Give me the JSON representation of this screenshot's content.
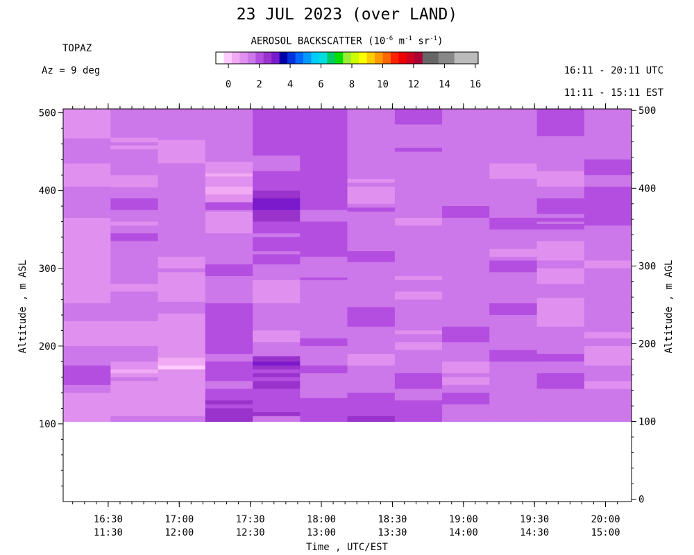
{
  "header": {
    "title": "23 JUL 2023 (over LAND)",
    "instrument": "TOPAZ",
    "azimuth": "Az =   9 deg",
    "utc_range": "16:11 - 20:11 UTC",
    "est_range": "11:11 - 15:11 EST"
  },
  "colorbar": {
    "title_parts": [
      "AEROSOL BACKSCATTER (10",
      "-6",
      " m",
      "-1",
      " sr",
      "-1",
      ")"
    ],
    "ticks": [
      "0",
      "2",
      "4",
      "6",
      "8",
      "10",
      "12",
      "14",
      "16"
    ],
    "colors": [
      "#ffffff",
      "#ffccff",
      "#f2aaf5",
      "#e090ee",
      "#cc77ea",
      "#b44ee0",
      "#9933cc",
      "#7a1acc",
      "#0000aa",
      "#0033dd",
      "#0066ff",
      "#0099ff",
      "#00ccff",
      "#00dddd",
      "#00cc66",
      "#00dd00",
      "#99ee33",
      "#ccff00",
      "#ffff00",
      "#ffcc00",
      "#ff9900",
      "#ff6600",
      "#ff2200",
      "#ee0000",
      "#cc0022",
      "#aa0033",
      "#666666",
      "#666666",
      "#888888",
      "#888888",
      "#bbbbbb",
      "#bbbbbb",
      "#bbbbbb"
    ]
  },
  "chart_data": {
    "type": "heatmap",
    "title": "23 JUL 2023 (over LAND)",
    "ylabel_left": "Altitude , m ASL",
    "ylabel_right": "Altitude , m AGL",
    "xlabel": "Time , UTC/EST",
    "y_left_ticks": [
      "100",
      "200",
      "300",
      "400",
      "500"
    ],
    "y_left_tick_values": [
      100,
      200,
      300,
      400,
      500
    ],
    "y_right_ticks": [
      "0",
      "100",
      "200",
      "300",
      "400",
      "500"
    ],
    "y_right_tick_values": [
      0,
      100,
      200,
      300,
      400,
      500
    ],
    "ylim_asl": [
      0,
      500
    ],
    "x_ticks_utc": [
      "16:30",
      "17:00",
      "17:30",
      "18:00",
      "18:30",
      "19:00",
      "19:30",
      "20:00"
    ],
    "x_ticks_est": [
      "11:30",
      "12:00",
      "12:30",
      "13:00",
      "13:30",
      "14:00",
      "14:30",
      "15:00"
    ],
    "x_tick_values_hours": [
      16.5,
      17.0,
      17.5,
      18.0,
      18.5,
      19.0,
      19.5,
      20.0
    ],
    "xlim_hours": [
      16.183,
      20.183
    ],
    "colorbar_range": [
      0,
      16
    ],
    "units": "10^-6 m^-1 sr^-1",
    "columns": [
      {
        "t_start": 16.183,
        "t_end": 16.517,
        "bins": [
          {
            "top": 505,
            "val": 1.8
          },
          {
            "top": 488,
            "val": 1.6
          },
          {
            "top": 474,
            "val": 1.9
          },
          {
            "top": 467,
            "val": 2.2
          },
          {
            "top": 435,
            "val": 1.6
          },
          {
            "top": 405,
            "val": 2.0
          },
          {
            "top": 365,
            "val": 1.7
          },
          {
            "top": 255,
            "val": 2.1
          },
          {
            "top": 232,
            "val": 1.7
          },
          {
            "top": 200,
            "val": 2.1
          },
          {
            "top": 175,
            "val": 2.6
          },
          {
            "top": 150,
            "val": 2.2
          },
          {
            "top": 140,
            "val": 1.7
          }
        ]
      },
      {
        "t_start": 16.517,
        "t_end": 16.85,
        "bins": [
          {
            "top": 505,
            "val": 2.1
          },
          {
            "top": 468,
            "val": 1.6
          },
          {
            "top": 462,
            "val": 2.1
          },
          {
            "top": 458,
            "val": 1.6
          },
          {
            "top": 453,
            "val": 2.1
          },
          {
            "top": 420,
            "val": 1.6
          },
          {
            "top": 404,
            "val": 2.0
          },
          {
            "top": 390,
            "val": 2.5
          },
          {
            "top": 375,
            "val": 2.1
          },
          {
            "top": 360,
            "val": 1.7
          },
          {
            "top": 355,
            "val": 2.1
          },
          {
            "top": 345,
            "val": 2.5
          },
          {
            "top": 335,
            "val": 2.1
          },
          {
            "top": 290,
            "val": 2.0
          },
          {
            "top": 280,
            "val": 1.7
          },
          {
            "top": 270,
            "val": 2.0
          },
          {
            "top": 232,
            "val": 1.7
          },
          {
            "top": 200,
            "val": 2.0
          },
          {
            "top": 180,
            "val": 1.6
          },
          {
            "top": 170,
            "val": 1.3
          },
          {
            "top": 165,
            "val": 1.6
          },
          {
            "top": 160,
            "val": 2.1
          },
          {
            "top": 155,
            "val": 1.7
          },
          {
            "top": 120,
            "val": 1.8
          },
          {
            "top": 110,
            "val": 2.2
          }
        ]
      },
      {
        "t_start": 16.85,
        "t_end": 17.183,
        "bins": [
          {
            "top": 505,
            "val": 2.1
          },
          {
            "top": 465,
            "val": 1.6
          },
          {
            "top": 435,
            "val": 2.1
          },
          {
            "top": 315,
            "val": 1.7
          },
          {
            "top": 300,
            "val": 2.1
          },
          {
            "top": 295,
            "val": 1.7
          },
          {
            "top": 257,
            "val": 2.0
          },
          {
            "top": 242,
            "val": 1.7
          },
          {
            "top": 185,
            "val": 1.2
          },
          {
            "top": 175,
            "val": 0.9
          },
          {
            "top": 170,
            "val": 1.5
          },
          {
            "top": 110,
            "val": 2.0
          }
        ]
      },
      {
        "t_start": 17.183,
        "t_end": 17.517,
        "bins": [
          {
            "top": 505,
            "val": 2.1
          },
          {
            "top": 437,
            "val": 1.6
          },
          {
            "top": 422,
            "val": 1.2
          },
          {
            "top": 418,
            "val": 1.7
          },
          {
            "top": 405,
            "val": 1.4
          },
          {
            "top": 395,
            "val": 1.8
          },
          {
            "top": 385,
            "val": 2.5
          },
          {
            "top": 375,
            "val": 2.1
          },
          {
            "top": 373,
            "val": 1.5
          },
          {
            "top": 345,
            "val": 2.0
          },
          {
            "top": 310,
            "val": 2.0
          },
          {
            "top": 305,
            "val": 2.5
          },
          {
            "top": 290,
            "val": 2.1
          },
          {
            "top": 255,
            "val": 2.6
          },
          {
            "top": 190,
            "val": 2.1
          },
          {
            "top": 180,
            "val": 2.5
          },
          {
            "top": 155,
            "val": 2.1
          },
          {
            "top": 145,
            "val": 2.6
          },
          {
            "top": 135,
            "val": 2.9
          },
          {
            "top": 130,
            "val": 3.2
          },
          {
            "top": 125,
            "val": 2.5
          },
          {
            "top": 120,
            "val": 3.2
          }
        ]
      },
      {
        "t_start": 17.517,
        "t_end": 17.85,
        "bins": [
          {
            "top": 505,
            "val": 2.8
          },
          {
            "top": 445,
            "val": 2.4
          },
          {
            "top": 425,
            "val": 2.7
          },
          {
            "top": 400,
            "val": 3.2
          },
          {
            "top": 390,
            "val": 3.4
          },
          {
            "top": 380,
            "val": 3.6
          },
          {
            "top": 375,
            "val": 3.3
          },
          {
            "top": 365,
            "val": 3.2
          },
          {
            "top": 360,
            "val": 2.6
          },
          {
            "top": 345,
            "val": 2.2
          },
          {
            "top": 340,
            "val": 2.6
          },
          {
            "top": 325,
            "val": 2.7
          },
          {
            "top": 322,
            "val": 2.3
          },
          {
            "top": 318,
            "val": 2.6
          },
          {
            "top": 305,
            "val": 2.4
          },
          {
            "top": 288,
            "val": 2.2
          },
          {
            "top": 285,
            "val": 1.7
          },
          {
            "top": 255,
            "val": 2.1
          },
          {
            "top": 220,
            "val": 1.6
          },
          {
            "top": 205,
            "val": 2.0
          },
          {
            "top": 187,
            "val": 3.2
          },
          {
            "top": 180,
            "val": 3.5
          },
          {
            "top": 175,
            "val": 3.2
          },
          {
            "top": 170,
            "val": 2.6
          },
          {
            "top": 165,
            "val": 3.2
          },
          {
            "top": 160,
            "val": 2.6
          },
          {
            "top": 155,
            "val": 3.2
          },
          {
            "top": 145,
            "val": 2.7
          },
          {
            "top": 120,
            "val": 2.5
          },
          {
            "top": 115,
            "val": 3.2
          },
          {
            "top": 110,
            "val": 2.2
          }
        ]
      },
      {
        "t_start": 17.85,
        "t_end": 18.183,
        "bins": [
          {
            "top": 505,
            "val": 2.8
          },
          {
            "top": 385,
            "val": 2.6
          },
          {
            "top": 375,
            "val": 2.4
          },
          {
            "top": 370,
            "val": 2.2
          },
          {
            "top": 360,
            "val": 2.6
          },
          {
            "top": 315,
            "val": 2.2
          },
          {
            "top": 288,
            "val": 2.5
          },
          {
            "top": 285,
            "val": 2.1
          },
          {
            "top": 210,
            "val": 2.5
          },
          {
            "top": 200,
            "val": 2.2
          },
          {
            "top": 175,
            "val": 2.6
          },
          {
            "top": 165,
            "val": 2.3
          },
          {
            "top": 133,
            "val": 2.5
          }
        ]
      },
      {
        "t_start": 18.183,
        "t_end": 18.517,
        "bins": [
          {
            "top": 505,
            "val": 2.1
          },
          {
            "top": 415,
            "val": 1.6
          },
          {
            "top": 410,
            "val": 2.0
          },
          {
            "top": 405,
            "val": 1.6
          },
          {
            "top": 395,
            "val": 1.8
          },
          {
            "top": 383,
            "val": 2.1
          },
          {
            "top": 378,
            "val": 2.5
          },
          {
            "top": 373,
            "val": 2.2
          },
          {
            "top": 322,
            "val": 2.6
          },
          {
            "top": 308,
            "val": 2.2
          },
          {
            "top": 250,
            "val": 2.6
          },
          {
            "top": 225,
            "val": 2.1
          },
          {
            "top": 190,
            "val": 1.7
          },
          {
            "top": 175,
            "val": 2.2
          },
          {
            "top": 140,
            "val": 2.6
          },
          {
            "top": 110,
            "val": 3.1
          }
        ]
      },
      {
        "t_start": 18.517,
        "t_end": 18.85,
        "bins": [
          {
            "top": 505,
            "val": 2.7
          },
          {
            "top": 485,
            "val": 2.1
          },
          {
            "top": 455,
            "val": 2.6
          },
          {
            "top": 450,
            "val": 2.1
          },
          {
            "top": 365,
            "val": 1.7
          },
          {
            "top": 355,
            "val": 2.1
          },
          {
            "top": 290,
            "val": 1.7
          },
          {
            "top": 285,
            "val": 2.1
          },
          {
            "top": 270,
            "val": 1.7
          },
          {
            "top": 260,
            "val": 2.1
          },
          {
            "top": 250,
            "val": 2.4
          },
          {
            "top": 240,
            "val": 2.0
          },
          {
            "top": 220,
            "val": 1.7
          },
          {
            "top": 215,
            "val": 2.1
          },
          {
            "top": 205,
            "val": 1.6
          },
          {
            "top": 195,
            "val": 2.1
          },
          {
            "top": 165,
            "val": 2.6
          },
          {
            "top": 145,
            "val": 2.1
          },
          {
            "top": 140,
            "val": 2.3
          },
          {
            "top": 130,
            "val": 2.5
          }
        ]
      },
      {
        "t_start": 18.85,
        "t_end": 19.183,
        "bins": [
          {
            "top": 505,
            "val": 2.1
          },
          {
            "top": 380,
            "val": 2.5
          },
          {
            "top": 365,
            "val": 2.1
          },
          {
            "top": 225,
            "val": 2.6
          },
          {
            "top": 205,
            "val": 2.1
          },
          {
            "top": 180,
            "val": 1.6
          },
          {
            "top": 165,
            "val": 2.0
          },
          {
            "top": 160,
            "val": 1.6
          },
          {
            "top": 150,
            "val": 2.1
          },
          {
            "top": 140,
            "val": 2.5
          },
          {
            "top": 125,
            "val": 2.3
          }
        ]
      },
      {
        "t_start": 19.183,
        "t_end": 19.517,
        "bins": [
          {
            "top": 505,
            "val": 2.1
          },
          {
            "top": 435,
            "val": 1.6
          },
          {
            "top": 415,
            "val": 2.1
          },
          {
            "top": 365,
            "val": 2.5
          },
          {
            "top": 350,
            "val": 2.1
          },
          {
            "top": 325,
            "val": 1.7
          },
          {
            "top": 315,
            "val": 2.1
          },
          {
            "top": 310,
            "val": 2.5
          },
          {
            "top": 295,
            "val": 2.1
          },
          {
            "top": 255,
            "val": 2.5
          },
          {
            "top": 240,
            "val": 2.1
          },
          {
            "top": 195,
            "val": 2.5
          },
          {
            "top": 180,
            "val": 2.1
          },
          {
            "top": 175,
            "val": 2.4
          },
          {
            "top": 170,
            "val": 2.1
          }
        ]
      },
      {
        "t_start": 19.517,
        "t_end": 19.85,
        "bins": [
          {
            "top": 505,
            "val": 2.6
          },
          {
            "top": 470,
            "val": 2.1
          },
          {
            "top": 425,
            "val": 1.7
          },
          {
            "top": 405,
            "val": 2.1
          },
          {
            "top": 390,
            "val": 2.5
          },
          {
            "top": 370,
            "val": 2.1
          },
          {
            "top": 365,
            "val": 2.5
          },
          {
            "top": 360,
            "val": 2.1
          },
          {
            "top": 357,
            "val": 2.5
          },
          {
            "top": 350,
            "val": 2.1
          },
          {
            "top": 335,
            "val": 1.7
          },
          {
            "top": 310,
            "val": 2.1
          },
          {
            "top": 300,
            "val": 1.7
          },
          {
            "top": 280,
            "val": 2.1
          },
          {
            "top": 262,
            "val": 1.7
          },
          {
            "top": 225,
            "val": 2.1
          },
          {
            "top": 190,
            "val": 2.5
          },
          {
            "top": 180,
            "val": 2.1
          },
          {
            "top": 165,
            "val": 2.6
          },
          {
            "top": 145,
            "val": 2.2
          }
        ]
      },
      {
        "t_start": 19.85,
        "t_end": 20.183,
        "bins": [
          {
            "top": 505,
            "val": 2.1
          },
          {
            "top": 440,
            "val": 2.6
          },
          {
            "top": 420,
            "val": 2.1
          },
          {
            "top": 405,
            "val": 2.6
          },
          {
            "top": 355,
            "val": 2.1
          },
          {
            "top": 310,
            "val": 1.8
          },
          {
            "top": 300,
            "val": 2.1
          },
          {
            "top": 218,
            "val": 1.7
          },
          {
            "top": 210,
            "val": 2.1
          },
          {
            "top": 200,
            "val": 1.7
          },
          {
            "top": 175,
            "val": 2.1
          },
          {
            "top": 155,
            "val": 1.7
          },
          {
            "top": 145,
            "val": 2.1
          },
          {
            "top": 125,
            "val": 2.4
          },
          {
            "top": 120,
            "val": 2.1
          }
        ]
      }
    ]
  }
}
